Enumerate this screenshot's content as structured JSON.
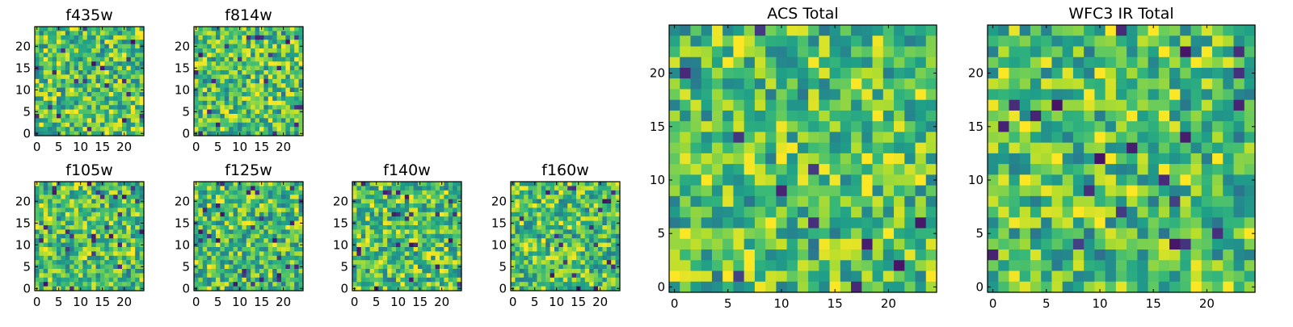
{
  "chart_data": [
    {
      "type": "heatmap",
      "title": "f435w",
      "xticks": [
        0,
        5,
        10,
        15,
        20
      ],
      "yticks": [
        0,
        5,
        10,
        15,
        20
      ],
      "xlim": [
        0,
        24
      ],
      "ylim": [
        0,
        24
      ],
      "colormap": "viridis"
    },
    {
      "type": "heatmap",
      "title": "f814w",
      "xticks": [
        0,
        5,
        10,
        15,
        20
      ],
      "yticks": [
        0,
        5,
        10,
        15,
        20
      ],
      "xlim": [
        0,
        24
      ],
      "ylim": [
        0,
        24
      ],
      "colormap": "viridis"
    },
    {
      "type": "heatmap",
      "title": "f105w",
      "xticks": [
        0,
        5,
        10,
        15,
        20
      ],
      "yticks": [
        0,
        5,
        10,
        15,
        20
      ],
      "xlim": [
        0,
        24
      ],
      "ylim": [
        0,
        24
      ],
      "colormap": "viridis"
    },
    {
      "type": "heatmap",
      "title": "f125w",
      "xticks": [
        0,
        5,
        10,
        15,
        20
      ],
      "yticks": [
        0,
        5,
        10,
        15,
        20
      ],
      "xlim": [
        0,
        24
      ],
      "ylim": [
        0,
        24
      ],
      "colormap": "viridis"
    },
    {
      "type": "heatmap",
      "title": "f140w",
      "xticks": [
        0,
        5,
        10,
        15,
        20
      ],
      "yticks": [
        0,
        5,
        10,
        15,
        20
      ],
      "xlim": [
        0,
        24
      ],
      "ylim": [
        0,
        24
      ],
      "colormap": "viridis"
    },
    {
      "type": "heatmap",
      "title": "f160w",
      "xticks": [
        0,
        5,
        10,
        15,
        20
      ],
      "yticks": [
        0,
        5,
        10,
        15,
        20
      ],
      "xlim": [
        0,
        24
      ],
      "ylim": [
        0,
        24
      ],
      "colormap": "viridis"
    },
    {
      "type": "heatmap",
      "title": "ACS Total",
      "xticks": [
        0,
        5,
        10,
        15,
        20
      ],
      "yticks": [
        0,
        5,
        10,
        15,
        20
      ],
      "xlim": [
        0,
        24
      ],
      "ylim": [
        0,
        24
      ],
      "colormap": "viridis"
    },
    {
      "type": "heatmap",
      "title": "WFC3 IR Total",
      "xticks": [
        0,
        5,
        10,
        15,
        20
      ],
      "yticks": [
        0,
        5,
        10,
        15,
        20
      ],
      "xlim": [
        0,
        24
      ],
      "ylim": [
        0,
        24
      ],
      "colormap": "viridis"
    }
  ]
}
